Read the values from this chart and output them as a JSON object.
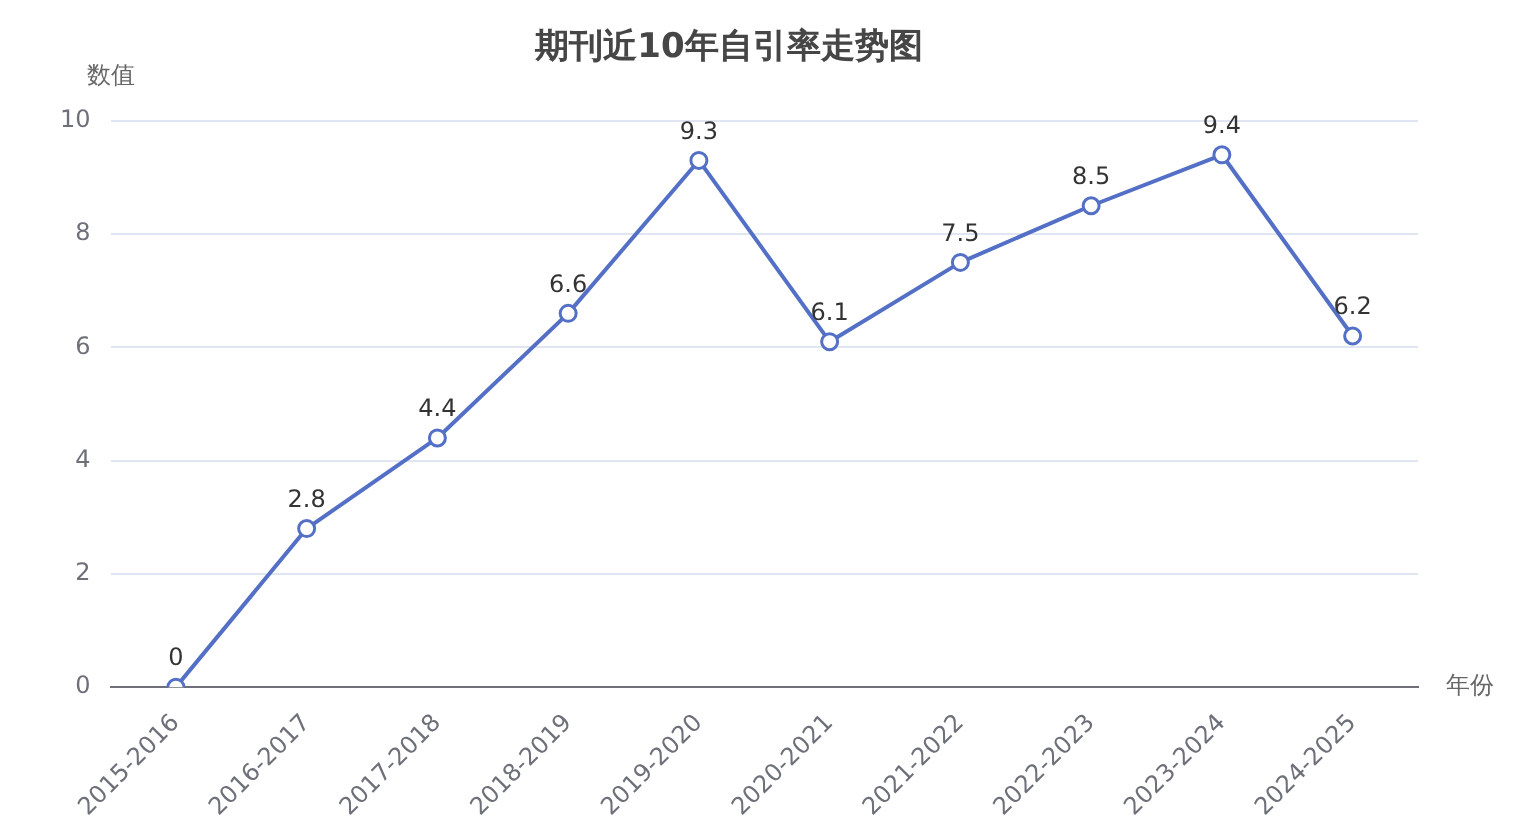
{
  "chart_data": {
    "type": "line",
    "title": "期刊近10年自引率走势图",
    "xlabel": "年份",
    "ylabel": "数值",
    "categories": [
      "2015-2016",
      "2016-2017",
      "2017-2018",
      "2018-2019",
      "2019-2020",
      "2020-2021",
      "2021-2022",
      "2022-2023",
      "2023-2024",
      "2024-2025"
    ],
    "series": [
      {
        "color": "#5470c6",
        "values": [
          0,
          2.8,
          4.4,
          6.6,
          9.3,
          6.1,
          7.5,
          8.5,
          9.4,
          6.2
        ]
      }
    ],
    "ylim": [
      0,
      10
    ],
    "yticks": [
      0,
      2,
      4,
      6,
      8,
      10
    ],
    "grid": "y",
    "legend": false,
    "marker": "circle",
    "line_style": "solid",
    "data_labels": true
  }
}
